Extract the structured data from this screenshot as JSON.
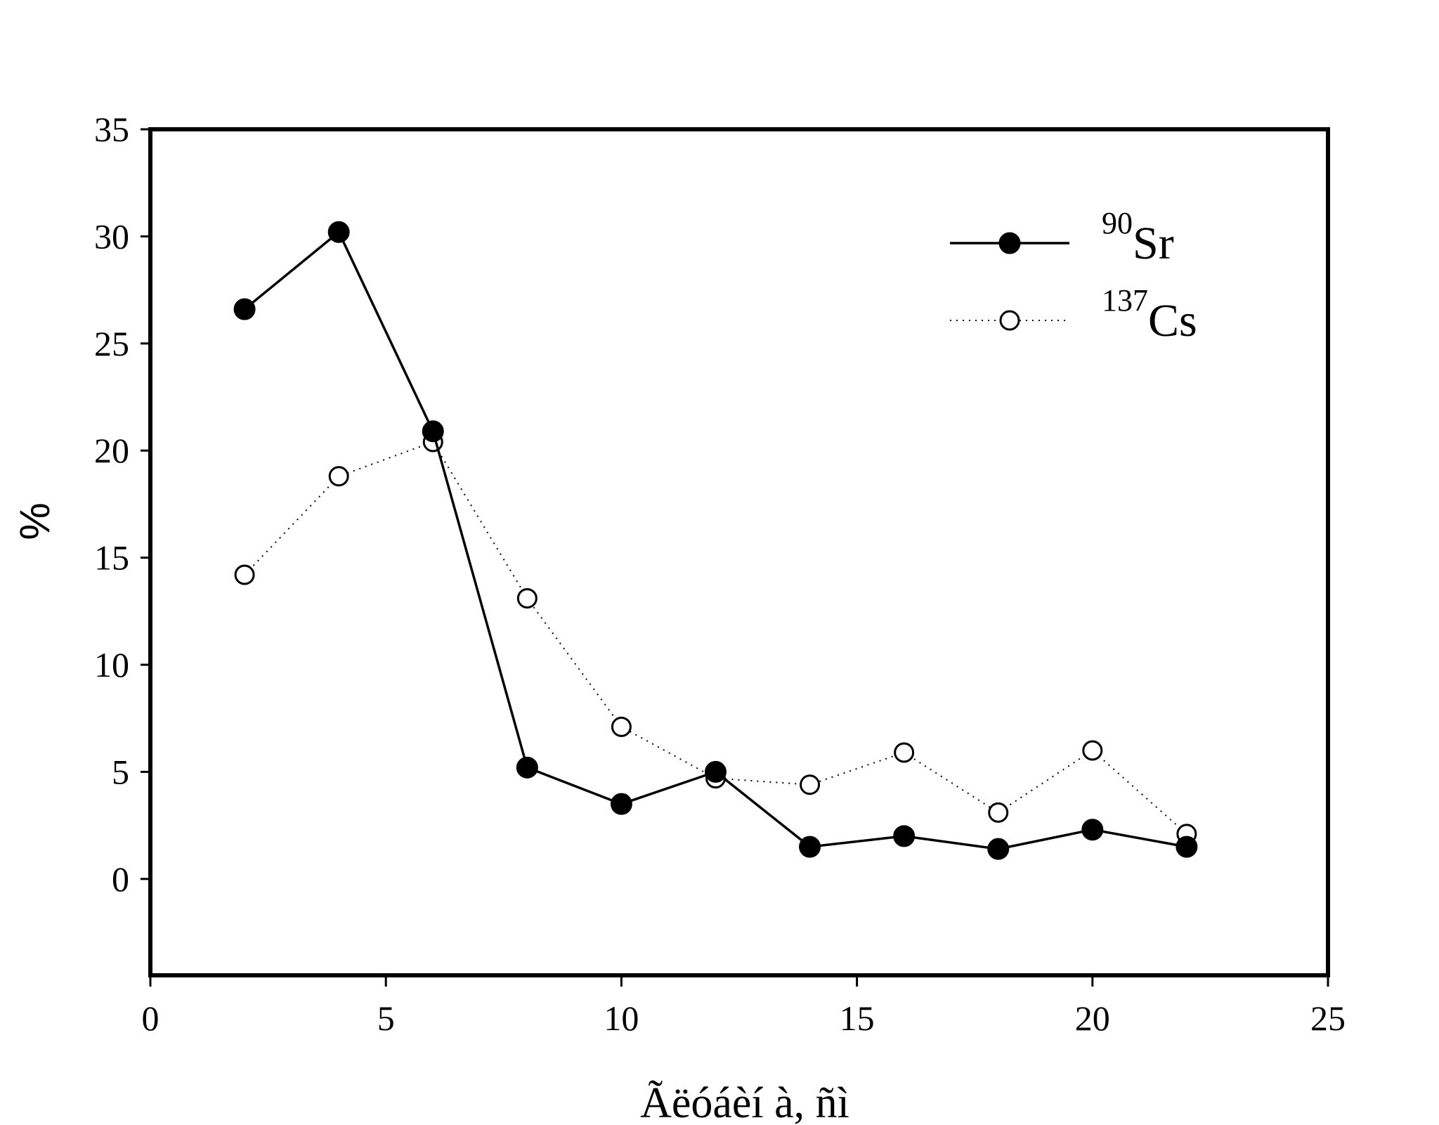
{
  "chart_data": {
    "type": "line",
    "title": "",
    "xlabel": "Ãëóáèí à, ñì",
    "ylabel": "%",
    "xlim": [
      0,
      25
    ],
    "ylim": [
      -4.5,
      35
    ],
    "x_ticks": [
      0,
      5,
      10,
      15,
      20,
      25
    ],
    "y_ticks": [
      0,
      5,
      10,
      15,
      20,
      25,
      30,
      35
    ],
    "grid": false,
    "legend_position": "top-right",
    "x": [
      2,
      4,
      6,
      8,
      10,
      12,
      14,
      16,
      18,
      20,
      22
    ],
    "series": [
      {
        "name_sup": "90",
        "name_base": "Sr",
        "marker": "filled-circle",
        "line": "solid",
        "values": [
          26.6,
          30.2,
          20.9,
          5.2,
          3.5,
          5.0,
          1.5,
          2.0,
          1.4,
          2.3,
          1.5
        ]
      },
      {
        "name_sup": "137",
        "name_base": "Cs",
        "marker": "open-circle",
        "line": "dotted",
        "values": [
          14.2,
          18.8,
          20.4,
          13.1,
          7.1,
          4.7,
          4.4,
          5.9,
          3.1,
          6.0,
          2.1
        ]
      }
    ],
    "colors": {
      "axis": "#000000",
      "marker_open_fill": "#ffffff"
    }
  }
}
